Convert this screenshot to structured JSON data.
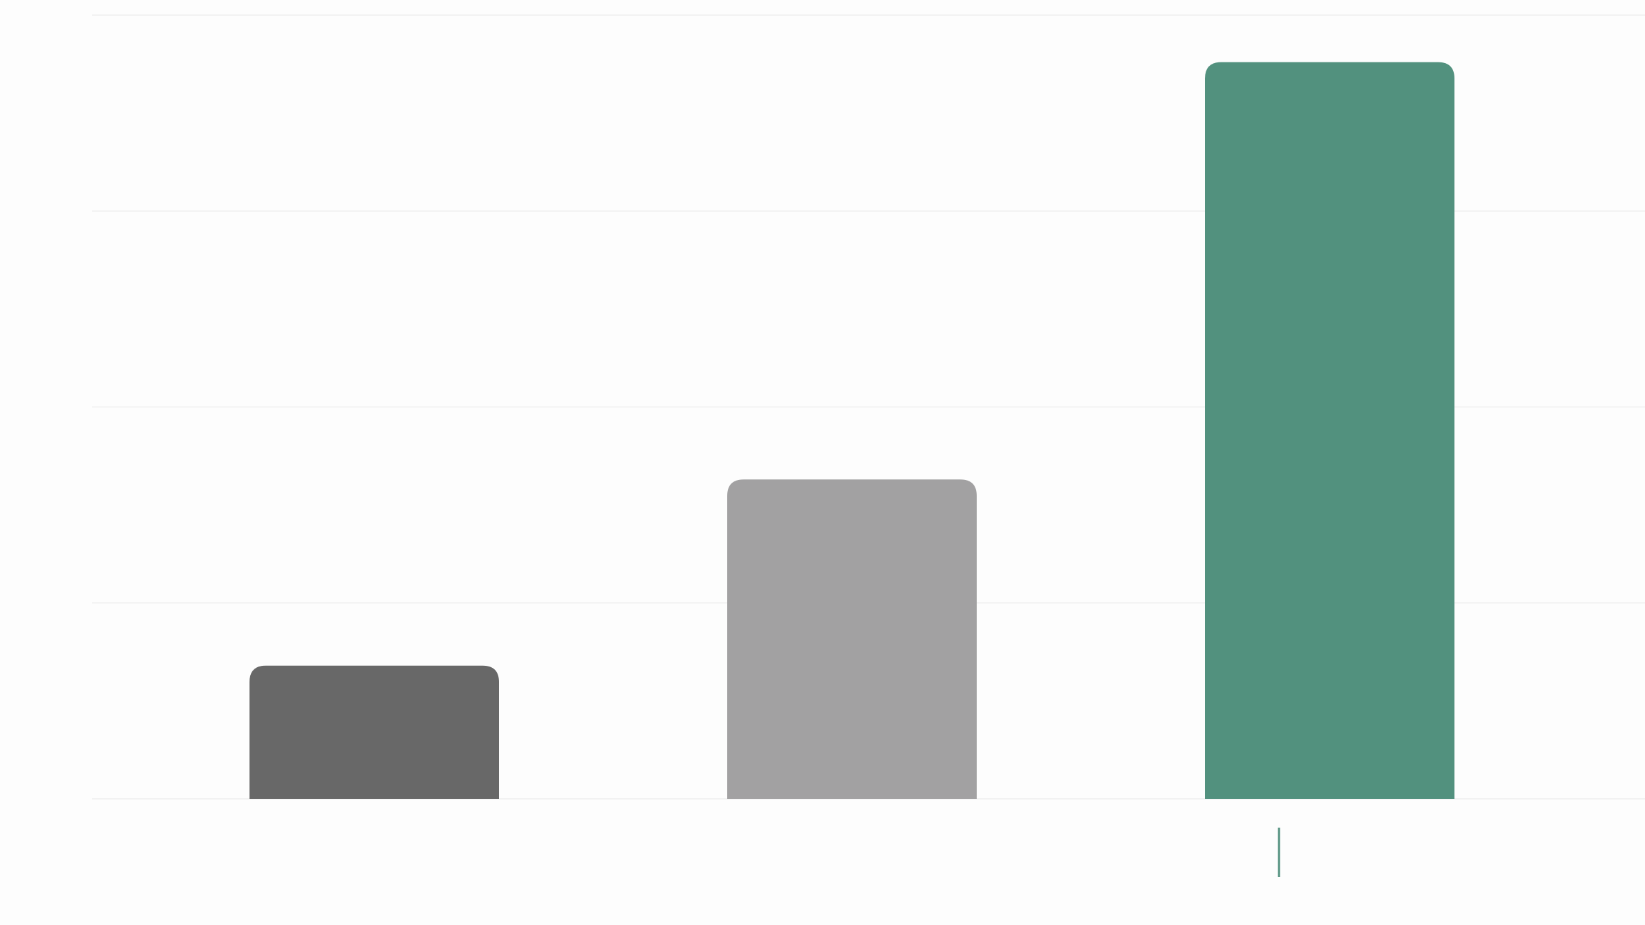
{
  "chart_data": {
    "type": "bar",
    "title": "",
    "xlabel": "",
    "ylabel": "",
    "grid": true,
    "legend": "none",
    "ylim": [
      0,
      4
    ],
    "categories": [
      "",
      "",
      ""
    ],
    "values": [
      0.68,
      1.63,
      3.76
    ],
    "colors": [
      "#686868",
      "#a2a1a2",
      "#52917e"
    ],
    "gridline_color": "#f2f2f2",
    "marker": {
      "category_index": 2,
      "color": "#52917e"
    }
  }
}
